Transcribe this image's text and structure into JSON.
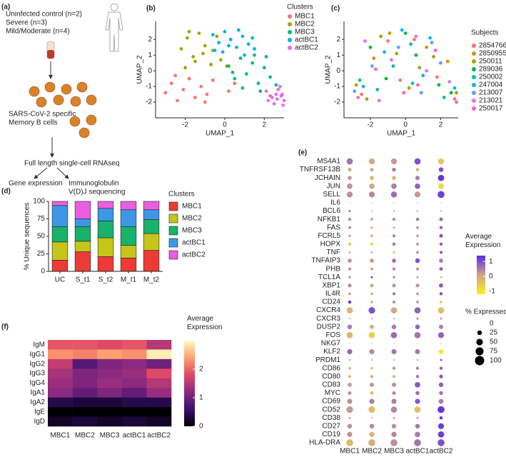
{
  "diagram": {
    "panel": "(a)",
    "groups": [
      "Uninfected control (n=2)",
      "Severe (n=3)",
      "Mild/Moderate (n=4)"
    ],
    "cells": [
      "SARS-CoV-2 specific",
      "Memory B cells"
    ],
    "method": "Full length single-cell RNAseq",
    "outputs": [
      "Gene expression",
      "Immunoglobulin",
      "V(D)J sequencing"
    ]
  },
  "chart_data": [
    {
      "type": "scatter",
      "panel": "(b)",
      "x_label": "UMAP_1",
      "y_label": "UMAP_2",
      "legend_title": "Clusters",
      "legend": "right",
      "xlim": [
        -3.5,
        3.0
      ],
      "ylim": [
        -3.0,
        3.15
      ],
      "xticks": [
        -2,
        0,
        2
      ],
      "yticks": [
        -2,
        -1,
        0,
        1,
        2
      ],
      "series": [
        {
          "name": "MBC1",
          "color": "#f8766d",
          "x": [
            -3.0,
            -2.7,
            -2.4,
            -2.1,
            -1.8,
            -1.5,
            -1.2,
            -0.9,
            -0.6,
            -2.5,
            -1.0,
            0.2,
            0.5,
            2.3
          ],
          "y": [
            -1.4,
            -0.8,
            -1.9,
            -1.2,
            -0.5,
            -1.7,
            -1.0,
            -1.5,
            -0.6,
            -0.3,
            -2.0,
            -1.3,
            -0.8,
            -1.6
          ]
        },
        {
          "name": "MBC2",
          "color": "#a3a500",
          "x": [
            -2.2,
            -1.9,
            -1.6,
            -1.3,
            -1.0,
            -0.7,
            -0.4,
            -2.0,
            -1.5,
            -1.1,
            -0.6,
            -0.2,
            0.1,
            -1.8
          ],
          "y": [
            1.4,
            2.1,
            0.9,
            2.4,
            1.6,
            0.4,
            2.2,
            0.2,
            0.6,
            1.1,
            1.3,
            0.7,
            0.3,
            2.5
          ]
        },
        {
          "name": "MBC3",
          "color": "#00bf7d",
          "x": [
            0.2,
            0.5,
            0.8,
            1.1,
            1.4,
            1.7,
            2.0,
            2.3,
            2.6,
            0.9,
            1.5,
            2.1,
            0.4,
            1.8
          ],
          "y": [
            0.3,
            -0.5,
            0.8,
            -0.2,
            0.5,
            -0.8,
            0.2,
            -0.4,
            -0.9,
            -1.1,
            1.0,
            0.9,
            -0.1,
            -1.3
          ]
        },
        {
          "name": "actBC1",
          "color": "#00b0f6",
          "x": [
            -0.6,
            -0.3,
            0.0,
            0.3,
            0.6,
            0.9,
            1.2,
            1.5,
            -0.1,
            0.7,
            1.0,
            0.2,
            1.4,
            -0.5
          ],
          "y": [
            2.3,
            1.8,
            2.5,
            2.0,
            1.5,
            2.2,
            1.7,
            1.4,
            1.2,
            2.6,
            1.0,
            1.6,
            2.1,
            1.3
          ]
        },
        {
          "name": "actBC2",
          "color": "#e76bf3",
          "x": [
            2.1,
            2.4,
            2.7,
            3.0,
            2.9,
            2.5,
            2.85,
            2.95,
            2.2,
            2.8,
            2.65,
            2.6
          ],
          "y": [
            -1.3,
            -1.7,
            -1.2,
            -1.9,
            -1.5,
            -2.1,
            -1.6,
            -2.2,
            -1.9,
            -1.0,
            -1.8,
            -1.5
          ]
        }
      ]
    },
    {
      "type": "scatter",
      "panel": "(c)",
      "x_label": "UMAP_1",
      "y_label": "UMAP_2",
      "legend_title": "Subjects",
      "legend": "right",
      "xlim": [
        -3.5,
        3.0
      ],
      "ylim": [
        -3.0,
        3.15
      ],
      "xticks": [
        -2,
        0,
        2
      ],
      "yticks": [
        -2,
        -1,
        0,
        1,
        2
      ],
      "series": [
        {
          "name": "2854766",
          "color": "#f8766d",
          "x": [
            -2.5,
            -1.0,
            0.5,
            1.8,
            -0.3,
            2.8
          ],
          "y": [
            -1.5,
            1.9,
            2.0,
            -0.4,
            -0.6,
            -1.8
          ]
        },
        {
          "name": "2850955",
          "color": "#d39200",
          "x": [
            -1.8,
            0.2,
            1.2,
            -2.8,
            2.4,
            -0.9
          ],
          "y": [
            0.8,
            -1.1,
            1.5,
            -0.9,
            0.6,
            2.4
          ]
        },
        {
          "name": "250011",
          "color": "#93aa00",
          "x": [
            -1.4,
            0.8,
            -2.2,
            1.6,
            -0.5,
            2.9
          ],
          "y": [
            2.2,
            0.2,
            -1.8,
            0.9,
            1.1,
            -1.4
          ]
        },
        {
          "name": "289036",
          "color": "#00ba38",
          "x": [
            -2.0,
            0.0,
            1.9,
            -1.1,
            2.6,
            0.6
          ],
          "y": [
            1.5,
            2.4,
            -0.9,
            -0.5,
            -1.4,
            1.0
          ]
        },
        {
          "name": "250002",
          "color": "#00c19f",
          "x": [
            -2.6,
            -0.7,
            1.0,
            2.2,
            -1.6,
            0.3
          ],
          "y": [
            -0.6,
            0.3,
            -0.3,
            -1.7,
            -1.2,
            1.7
          ]
        },
        {
          "name": "247004",
          "color": "#00b9e3",
          "x": [
            -1.2,
            0.4,
            1.4,
            -2.4,
            2.8,
            -0.2
          ],
          "y": [
            1.2,
            -0.8,
            2.1,
            -1.0,
            -1.1,
            2.6
          ]
        },
        {
          "name": "213007",
          "color": "#619cff",
          "x": [
            -2.9,
            -0.4,
            0.9,
            2.0,
            -1.9,
            1.5
          ],
          "y": [
            -1.3,
            1.5,
            -1.4,
            0.5,
            0.3,
            1.8
          ]
        },
        {
          "name": "213021",
          "color": "#db72fb",
          "x": [
            -1.5,
            0.6,
            -0.8,
            2.5,
            -2.3,
            1.2
          ],
          "y": [
            -1.9,
            2.2,
            0.7,
            -0.7,
            1.9,
            0.0
          ]
        },
        {
          "name": "250017",
          "color": "#ff61c3",
          "x": [
            -1.7,
            -0.1,
            1.7,
            2.9,
            -2.7,
            0.7
          ],
          "y": [
            0.1,
            -1.4,
            1.3,
            -2.0,
            -1.7,
            -0.9
          ]
        }
      ]
    },
    {
      "type": "bar",
      "stacked": true,
      "panel": "(d)",
      "y_label": "% Unique sequences",
      "legend_title": "Clusters",
      "legend": "right",
      "categories": [
        "UC",
        "S_t1",
        "S_t2",
        "M_t1",
        "M_t2"
      ],
      "ylim": [
        0,
        100
      ],
      "yticks": [
        0,
        25,
        50,
        75,
        100
      ],
      "series": [
        {
          "name": "MBC1",
          "color": "#ee3a36",
          "values": [
            16,
            28,
            21,
            19,
            30
          ]
        },
        {
          "name": "MBC2",
          "color": "#c5c51a",
          "values": [
            26,
            15,
            27,
            18,
            24
          ]
        },
        {
          "name": "MBC3",
          "color": "#19b26b",
          "values": [
            22,
            21,
            24,
            27,
            20
          ]
        },
        {
          "name": "actBC1",
          "color": "#3d97e6",
          "values": [
            30,
            11,
            18,
            24,
            14
          ]
        },
        {
          "name": "actBC2",
          "color": "#ea5fe0",
          "values": [
            6,
            25,
            10,
            12,
            12
          ]
        }
      ]
    },
    {
      "type": "dot",
      "panel": "(e)",
      "color_label": "Average Expression",
      "size_label": "% Expressed",
      "categories": [
        "MBC1",
        "MBC2",
        "MBC3",
        "actBC1",
        "actBC2"
      ],
      "rows": [
        "MS4A1",
        "TNFRSF13B",
        "JCHAIN",
        "JUN",
        "SELL",
        "IL6",
        "BCL6",
        "NFKB1",
        "FAS",
        "FCRL5",
        "HOPX",
        "TNF",
        "TNFAIP3",
        "PHB",
        "TCL1A",
        "XBP1",
        "IL4R",
        "CD24",
        "CXCR4",
        "CXCR3",
        "DUSP2",
        "FOS",
        "NKG7",
        "KLF2",
        "PRDM1",
        "CD86",
        "CD80",
        "CD83",
        "MYC",
        "CD69",
        "CD52",
        "CD38",
        "CD27",
        "CD19",
        "HLA-DRA"
      ],
      "clim": [
        -1.2,
        1.4
      ],
      "cticks": [
        -1,
        0,
        1
      ],
      "colors": [
        "#f7f21c",
        "#d2a28a",
        "#5b2be6"
      ],
      "size_lim": [
        0,
        100
      ],
      "size_ticks": [
        0,
        25,
        50,
        75,
        100
      ],
      "expression": [
        [
          0.6,
          0,
          0.2,
          1,
          -0.5
        ],
        [
          0,
          0,
          0.5,
          -0.2,
          1
        ],
        [
          0.2,
          -0.2,
          -0.3,
          0.5,
          1.3
        ],
        [
          0.3,
          0,
          0.5,
          0.8,
          -0.8
        ],
        [
          0.3,
          0.4,
          0.7,
          0.2,
          1.2
        ],
        [
          0,
          0,
          0,
          0,
          0
        ],
        [
          0.8,
          -0.5,
          0,
          0.3,
          0
        ],
        [
          0.3,
          0,
          0.3,
          0.6,
          0.8
        ],
        [
          0.5,
          0,
          0,
          0.3,
          0.8
        ],
        [
          0,
          0,
          0.5,
          0.2,
          1
        ],
        [
          -0.5,
          -0.8,
          0.6,
          0.2,
          0.8
        ],
        [
          0,
          0,
          -0.3,
          0.4,
          0.8
        ],
        [
          0.3,
          0.2,
          0.6,
          1.0,
          0.5
        ],
        [
          0.3,
          0,
          0.3,
          0.2,
          0.8
        ],
        [
          0.6,
          1.2,
          0.5,
          0.3,
          -0.5
        ],
        [
          0.4,
          0,
          0.3,
          0.3,
          0.9
        ],
        [
          0.2,
          0,
          0.6,
          0.3,
          1
        ],
        [
          1.2,
          0,
          0.4,
          0.3,
          -0.5
        ],
        [
          -0.2,
          1.0,
          0,
          0.8,
          -0.4
        ],
        [
          0,
          0,
          0,
          0.5,
          0.3
        ],
        [
          0.5,
          0,
          0.5,
          0.8,
          0.5
        ],
        [
          -0.3,
          -0.7,
          0.7,
          0.6,
          0.8
        ],
        [
          0,
          0,
          0,
          0,
          0
        ],
        [
          0.8,
          0.4,
          0.6,
          0.5,
          -1
        ],
        [
          0.3,
          0,
          0,
          0.3,
          1
        ],
        [
          -0.2,
          -0.5,
          0.3,
          0.5,
          0.8
        ],
        [
          -0.3,
          0,
          -0.2,
          0.6,
          1
        ],
        [
          0.2,
          0.3,
          0.3,
          0.9,
          0.8
        ],
        [
          0.3,
          -0.4,
          0.4,
          0.7,
          0.6
        ],
        [
          0.3,
          0.5,
          0.5,
          0.9,
          0.5
        ],
        [
          0.2,
          -0.3,
          0.4,
          -0.4,
          1.3
        ],
        [
          0,
          -0.3,
          0,
          0.2,
          1.3
        ],
        [
          0.3,
          0.4,
          0.3,
          0.6,
          1.2
        ],
        [
          0.3,
          -0.2,
          0.4,
          0.5,
          1.2
        ],
        [
          -0.3,
          -0.1,
          0.3,
          0.6,
          1.0
        ]
      ],
      "percent": [
        [
          45,
          40,
          40,
          45,
          40
        ],
        [
          15,
          15,
          18,
          12,
          25
        ],
        [
          20,
          20,
          20,
          22,
          45
        ],
        [
          35,
          35,
          35,
          35,
          35
        ],
        [
          40,
          40,
          42,
          40,
          55
        ],
        [
          1,
          1,
          1,
          1,
          1
        ],
        [
          5,
          3,
          3,
          3,
          3
        ],
        [
          12,
          10,
          12,
          12,
          15
        ],
        [
          8,
          6,
          6,
          8,
          12
        ],
        [
          8,
          8,
          10,
          8,
          15
        ],
        [
          10,
          10,
          12,
          10,
          12
        ],
        [
          5,
          5,
          5,
          8,
          10
        ],
        [
          20,
          20,
          20,
          25,
          20
        ],
        [
          10,
          10,
          12,
          12,
          15
        ],
        [
          5,
          5,
          6,
          5,
          5
        ],
        [
          15,
          15,
          15,
          15,
          20
        ],
        [
          8,
          8,
          10,
          8,
          12
        ],
        [
          12,
          8,
          10,
          8,
          8
        ],
        [
          45,
          50,
          45,
          45,
          45
        ],
        [
          3,
          3,
          3,
          5,
          5
        ],
        [
          25,
          20,
          25,
          25,
          22
        ],
        [
          45,
          45,
          45,
          45,
          40
        ],
        [
          1,
          1,
          1,
          1,
          1
        ],
        [
          30,
          30,
          30,
          30,
          25
        ],
        [
          3,
          3,
          3,
          3,
          5
        ],
        [
          8,
          8,
          10,
          10,
          12
        ],
        [
          10,
          10,
          10,
          12,
          15
        ],
        [
          20,
          20,
          22,
          35,
          25
        ],
        [
          15,
          15,
          15,
          18,
          18
        ],
        [
          30,
          30,
          30,
          32,
          28
        ],
        [
          50,
          50,
          45,
          45,
          55
        ],
        [
          5,
          3,
          5,
          5,
          12
        ],
        [
          25,
          25,
          25,
          25,
          40
        ],
        [
          30,
          30,
          32,
          35,
          45
        ],
        [
          55,
          55,
          55,
          55,
          55
        ]
      ]
    },
    {
      "type": "heatmap",
      "panel": "(f)",
      "color_label": "Average Expression",
      "categories": [
        "MBC1",
        "MBC2",
        "MBC3",
        "actBC1",
        "actBC2"
      ],
      "rows": [
        "IgM",
        "IgG1",
        "IgG2",
        "IgG3",
        "IgG4",
        "IgA1",
        "IgA2",
        "IgE",
        "IgD"
      ],
      "clim": [
        0,
        3
      ],
      "cticks": [
        0,
        1,
        2
      ],
      "colors": [
        "#000004",
        "#3b0f70",
        "#8c2981",
        "#de4968",
        "#fe9f6d",
        "#fcfdbf"
      ],
      "values": [
        [
          1.9,
          1.9,
          1.8,
          1.9,
          1.5
        ],
        [
          2.3,
          2.2,
          2.4,
          2.3,
          2.9
        ],
        [
          1.6,
          0.8,
          1.1,
          1.2,
          1.0
        ],
        [
          1.4,
          1.1,
          1.2,
          1.3,
          1.8
        ],
        [
          1.3,
          1.1,
          1.3,
          1.2,
          1.5
        ],
        [
          1.2,
          0.9,
          1.1,
          0.9,
          1.3
        ],
        [
          0.4,
          0.3,
          0.3,
          0.4,
          0.4
        ],
        [
          0,
          0,
          0,
          0,
          0
        ],
        [
          0.2,
          0.3,
          0.2,
          0.3,
          0.2
        ]
      ]
    }
  ]
}
